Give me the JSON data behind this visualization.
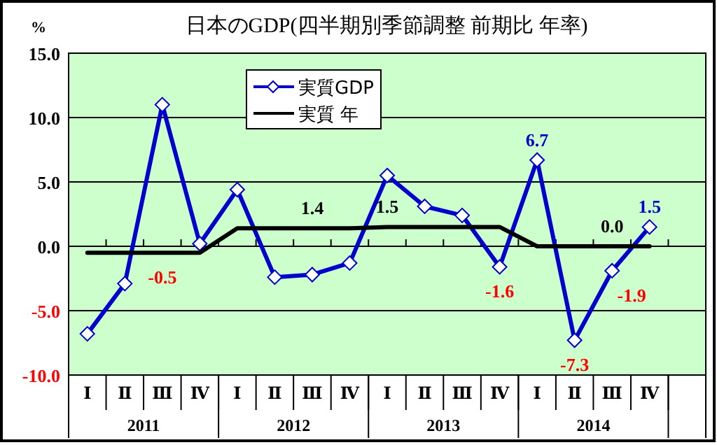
{
  "chart_data": {
    "type": "line",
    "title": "日本のGDP(四半期別季節調整 前期比 年率)",
    "ylabel": "%",
    "categories": [
      "Ⅰ",
      "Ⅱ",
      "Ⅲ",
      "Ⅳ",
      "Ⅰ",
      "Ⅱ",
      "Ⅲ",
      "Ⅳ",
      "Ⅰ",
      "Ⅱ",
      "Ⅲ",
      "Ⅳ",
      "Ⅰ",
      "Ⅱ",
      "Ⅲ",
      "Ⅳ",
      null
    ],
    "annotations": [
      "2011",
      "2012",
      "2013",
      "2014"
    ],
    "series": [
      {
        "name": "実質GDP",
        "color": "#0000cc",
        "marker": "diamond",
        "values": [
          -6.8,
          -2.9,
          11.0,
          0.2,
          4.4,
          -2.4,
          -2.2,
          -1.3,
          5.5,
          3.1,
          2.4,
          -1.6,
          6.7,
          -7.3,
          -1.9,
          1.5,
          null
        ],
        "value_labels": [
          null,
          null,
          null,
          null,
          null,
          null,
          null,
          null,
          null,
          null,
          null,
          "-1.6",
          "6.7",
          "-7.3",
          "-1.9",
          "1.5",
          null
        ]
      },
      {
        "name": "実質 年",
        "color": "#000000",
        "marker": "none",
        "values": [
          -0.5,
          -0.5,
          -0.5,
          -0.5,
          1.4,
          1.4,
          1.4,
          1.4,
          1.5,
          1.5,
          1.5,
          1.5,
          0.0,
          0.0,
          0.0,
          0.0,
          null
        ],
        "value_labels": [
          null,
          null,
          "-0.5",
          null,
          null,
          null,
          "1.4",
          null,
          "1.5",
          null,
          null,
          null,
          null,
          null,
          "0.0",
          null,
          null
        ]
      }
    ],
    "ylim": [
      -10,
      15
    ],
    "yticks": [
      {
        "value": -10,
        "label": "-10.0"
      },
      {
        "value": -5,
        "label": "-5.0"
      },
      {
        "value": 0,
        "label": "0.0"
      },
      {
        "value": 5,
        "label": "5.0"
      },
      {
        "value": 10,
        "label": "10.0"
      },
      {
        "value": 15,
        "label": "15.0"
      }
    ],
    "grid": "y",
    "legend": "top left",
    "line_style": "solid"
  }
}
